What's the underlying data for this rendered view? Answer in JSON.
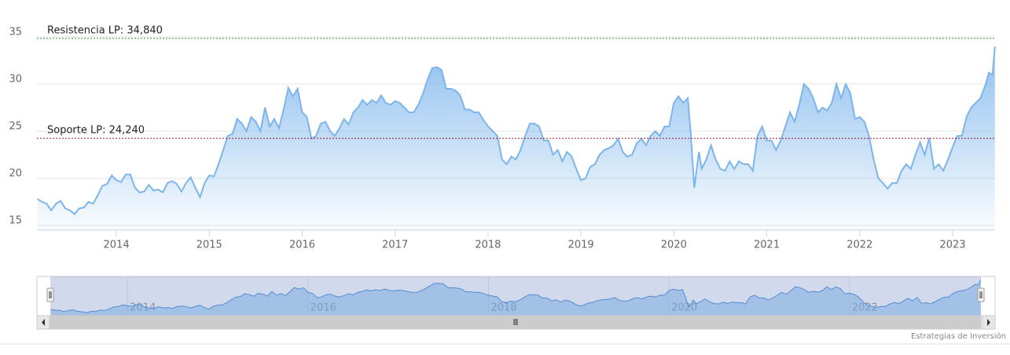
{
  "chart_data": {
    "type": "area",
    "color": "#7cb5ec",
    "x": [
      2013.15,
      2013.2,
      2013.25,
      2013.3,
      2013.35,
      2013.4,
      2013.45,
      2013.5,
      2013.55,
      2013.6,
      2013.65,
      2013.7,
      2013.75,
      2013.8,
      2013.85,
      2013.9,
      2013.95,
      2014.0,
      2014.05,
      2014.1,
      2014.15,
      2014.2,
      2014.25,
      2014.3,
      2014.35,
      2014.4,
      2014.45,
      2014.5,
      2014.55,
      2014.6,
      2014.65,
      2014.7,
      2014.75,
      2014.8,
      2014.85,
      2014.9,
      2014.95,
      2015.0,
      2015.05,
      2015.1,
      2015.15,
      2015.2,
      2015.25,
      2015.3,
      2015.35,
      2015.4,
      2015.45,
      2015.5,
      2015.55,
      2015.6,
      2015.65,
      2015.7,
      2015.75,
      2015.8,
      2015.85,
      2015.9,
      2015.95,
      2016.0,
      2016.05,
      2016.1,
      2016.15,
      2016.2,
      2016.25,
      2016.3,
      2016.35,
      2016.4,
      2016.45,
      2016.5,
      2016.55,
      2016.6,
      2016.65,
      2016.7,
      2016.75,
      2016.8,
      2016.85,
      2016.9,
      2016.95,
      2017.0,
      2017.05,
      2017.1,
      2017.15,
      2017.2,
      2017.25,
      2017.3,
      2017.35,
      2017.4,
      2017.45,
      2017.5,
      2017.55,
      2017.6,
      2017.65,
      2017.7,
      2017.75,
      2017.8,
      2017.85,
      2017.9,
      2017.95,
      2018.0,
      2018.05,
      2018.1,
      2018.15,
      2018.2,
      2018.25,
      2018.3,
      2018.35,
      2018.4,
      2018.45,
      2018.5,
      2018.55,
      2018.6,
      2018.65,
      2018.7,
      2018.75,
      2018.8,
      2018.85,
      2018.9,
      2018.95,
      2019.0,
      2019.05,
      2019.1,
      2019.15,
      2019.2,
      2019.25,
      2019.3,
      2019.35,
      2019.4,
      2019.45,
      2019.5,
      2019.55,
      2019.6,
      2019.65,
      2019.7,
      2019.75,
      2019.8,
      2019.85,
      2019.9,
      2019.95,
      2020.0,
      2020.05,
      2020.1,
      2020.15,
      2020.18,
      2020.22,
      2020.27,
      2020.3,
      2020.35,
      2020.4,
      2020.45,
      2020.5,
      2020.55,
      2020.6,
      2020.65,
      2020.7,
      2020.75,
      2020.8,
      2020.85,
      2020.9,
      2020.95,
      2021.0,
      2021.05,
      2021.1,
      2021.15,
      2021.2,
      2021.25,
      2021.3,
      2021.35,
      2021.4,
      2021.45,
      2021.5,
      2021.55,
      2021.6,
      2021.65,
      2021.7,
      2021.75,
      2021.8,
      2021.85,
      2021.9,
      2021.95,
      2022.0,
      2022.05,
      2022.1,
      2022.15,
      2022.2,
      2022.25,
      2022.3,
      2022.35,
      2022.4,
      2022.45,
      2022.5,
      2022.55,
      2022.6,
      2022.65,
      2022.7,
      2022.75,
      2022.8,
      2022.85,
      2022.9,
      2022.95,
      2023.0,
      2023.05,
      2023.1,
      2023.15,
      2023.2,
      2023.25,
      2023.3,
      2023.35,
      2023.39,
      2023.43,
      2023.455
    ],
    "values": [
      17.8,
      17.5,
      17.3,
      16.6,
      17.3,
      17.6,
      16.8,
      16.6,
      16.2,
      16.8,
      16.9,
      17.5,
      17.3,
      18.2,
      19.2,
      19.4,
      20.3,
      19.8,
      19.6,
      20.4,
      20.4,
      19.0,
      18.5,
      18.6,
      19.3,
      18.7,
      18.8,
      18.5,
      19.5,
      19.7,
      19.4,
      18.6,
      19.5,
      20.1,
      19.0,
      18.0,
      19.5,
      20.3,
      20.2,
      21.5,
      23.0,
      24.5,
      24.7,
      26.3,
      25.8,
      25.0,
      26.5,
      26.0,
      25.0,
      27.5,
      25.5,
      26.3,
      25.3,
      27.3,
      29.6,
      28.7,
      29.5,
      27.0,
      26.5,
      24.2,
      24.5,
      25.8,
      26.0,
      25.0,
      24.5,
      25.3,
      26.3,
      25.7,
      27.0,
      27.5,
      28.3,
      27.8,
      28.3,
      28.0,
      28.8,
      28.0,
      27.8,
      28.2,
      28.0,
      27.5,
      27.0,
      27.0,
      27.8,
      29.0,
      30.5,
      31.7,
      31.8,
      31.5,
      29.5,
      29.5,
      29.3,
      28.8,
      27.3,
      27.3,
      27.0,
      27.0,
      26.2,
      25.5,
      25.0,
      24.5,
      22.0,
      21.5,
      22.3,
      22.0,
      23.0,
      24.5,
      25.8,
      25.8,
      25.5,
      24.0,
      24.0,
      22.5,
      23.0,
      21.8,
      22.8,
      22.3,
      21.0,
      19.8,
      20.0,
      21.2,
      21.5,
      22.5,
      23.0,
      23.2,
      23.5,
      24.2,
      22.8,
      22.3,
      22.5,
      23.7,
      24.2,
      23.5,
      24.5,
      25.0,
      24.5,
      25.5,
      25.5,
      28.0,
      28.7,
      28.0,
      28.5,
      25.0,
      19.0,
      22.8,
      21.0,
      22.0,
      23.5,
      22.0,
      21.0,
      20.8,
      21.8,
      21.0,
      21.8,
      21.5,
      21.5,
      20.8,
      24.5,
      25.5,
      24.0,
      24.0,
      23.0,
      24.0,
      25.5,
      27.0,
      26.0,
      27.8,
      30.0,
      29.5,
      28.5,
      27.0,
      27.5,
      27.2,
      28.0,
      30.0,
      28.5,
      30.0,
      29.0,
      26.3,
      26.5,
      26.0,
      24.5,
      22.0,
      20.0,
      19.5,
      18.9,
      19.5,
      19.5,
      20.8,
      21.5,
      21.0,
      22.5,
      23.8,
      22.5,
      24.3,
      21.0,
      21.5,
      20.8,
      22.0,
      23.3,
      24.5,
      24.5,
      26.5,
      27.5,
      28.0,
      28.5,
      29.8,
      31.2,
      31.0,
      34.0
    ],
    "xlim": [
      2013.145,
      2023.457
    ],
    "xticks": [
      2014,
      2015,
      2016,
      2017,
      2018,
      2019,
      2020,
      2021,
      2022,
      2023
    ],
    "ylim": [
      14.5,
      35.5
    ],
    "yticks": [
      15,
      20,
      25,
      30,
      35
    ],
    "grid": true,
    "plot_lines": [
      {
        "label": "Resistencia LP: 34,840",
        "value": 34.84,
        "color": "#2e8b2e"
      },
      {
        "label": "Soporte LP: 24,240",
        "value": 24.24,
        "color": "#a0102a"
      }
    ],
    "navigator_xticks": [
      2014,
      2016,
      2018,
      2020,
      2022
    ],
    "credits": "Estrategias de Inversión"
  }
}
